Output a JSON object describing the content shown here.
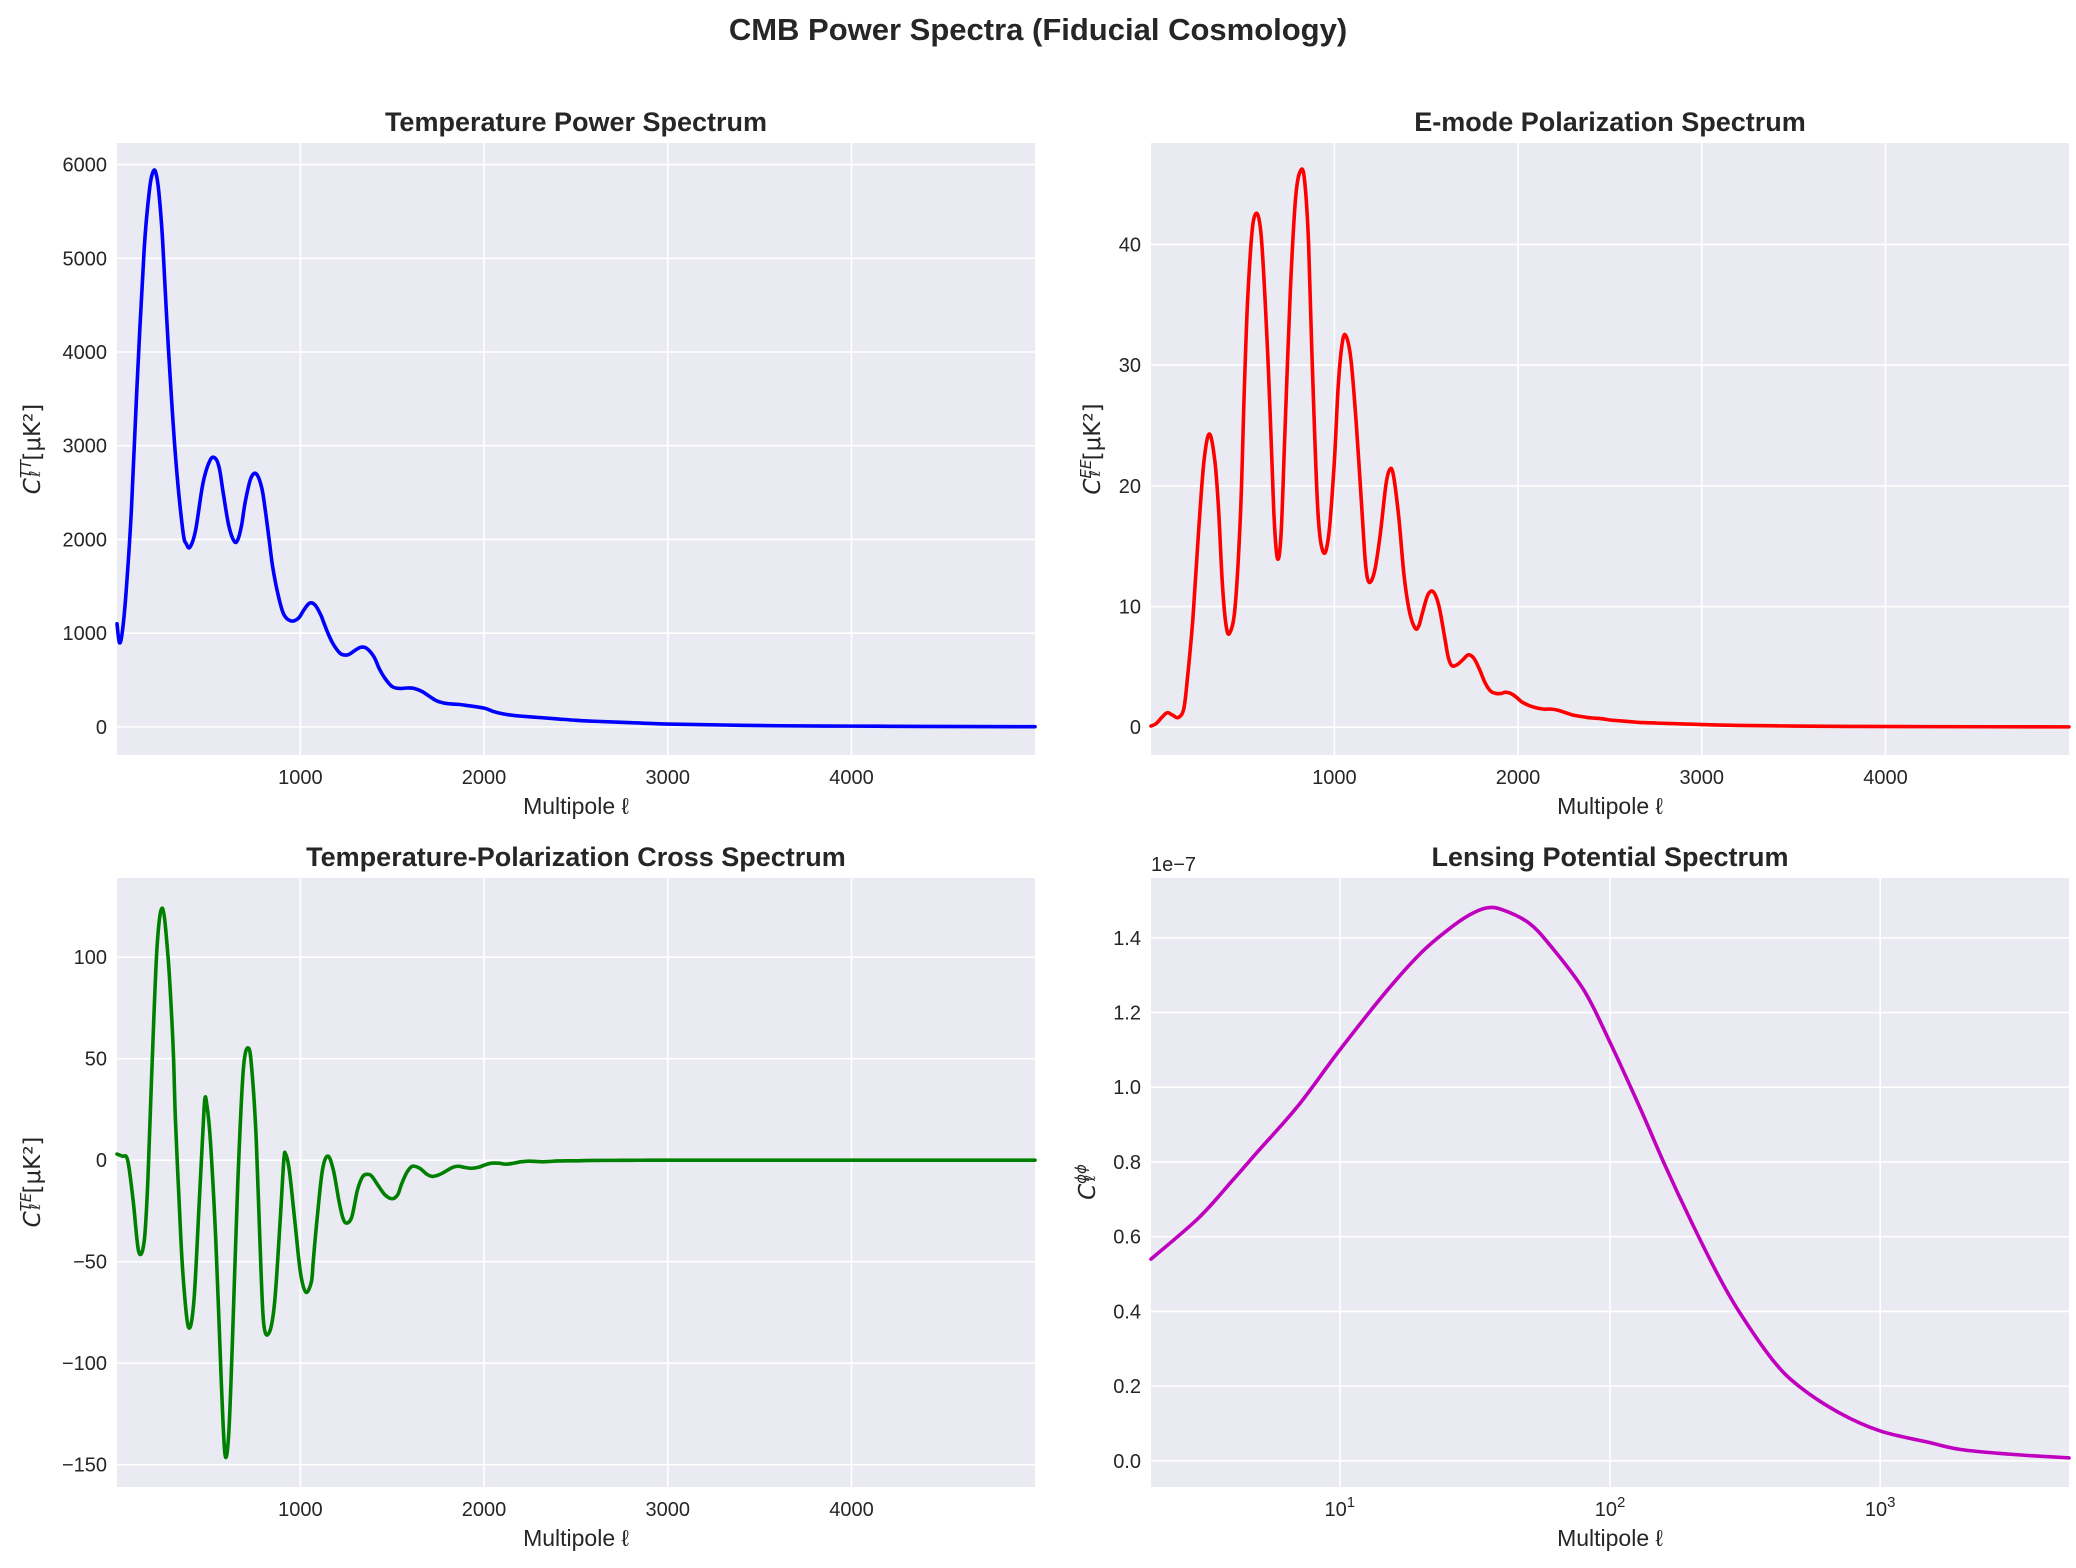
{
  "figure": {
    "suptitle": "CMB Power Spectra (Fiducial Cosmology)",
    "background": "#EAEAF2"
  },
  "chart_data": [
    {
      "id": "tt",
      "type": "line",
      "title": "Temperature Power Spectrum",
      "xlabel": "Multipole ℓ",
      "ylabel_base": "C",
      "ylabel_sup": "TT",
      "ylabel_units": "[μK²]",
      "xlim": [
        2,
        4999
      ],
      "ylim": [
        -300,
        6230
      ],
      "xscale": "linear",
      "xticks": [
        1000,
        2000,
        3000,
        4000
      ],
      "xtick_labels": [
        "1000",
        "2000",
        "3000",
        "4000"
      ],
      "yticks": [
        0,
        1000,
        2000,
        3000,
        4000,
        5000,
        6000
      ],
      "ytick_labels": [
        "0",
        "1000",
        "2000",
        "3000",
        "4000",
        "5000",
        "6000"
      ],
      "grid": true,
      "color": "#0000FF",
      "series": [
        {
          "x": [
            2,
            15,
            30,
            50,
            80,
            110,
            150,
            180,
            200,
            215,
            230,
            250,
            280,
            320,
            360,
            380,
            400,
            430,
            470,
            510,
            540,
            560,
            580,
            610,
            640,
            660,
            680,
            700,
            730,
            760,
            790,
            810,
            830,
            850,
            880,
            910,
            950,
            990,
            1020,
            1050,
            1080,
            1110,
            1130,
            1150,
            1180,
            1220,
            1260,
            1300,
            1330,
            1360,
            1400,
            1430,
            1460,
            1500,
            1540,
            1580,
            1620,
            1660,
            1700,
            1740,
            1780,
            1820,
            1860,
            1900,
            2000,
            2050,
            2100,
            2150,
            2200,
            2300,
            2400,
            2500,
            2600,
            2800,
            3000,
            3300,
            3600,
            4000,
            4400,
            4999
          ],
          "y": [
            1100,
            900,
            1000,
            1400,
            2300,
            3600,
            5100,
            5750,
            5930,
            5900,
            5700,
            5200,
            4100,
            2900,
            2100,
            1950,
            1920,
            2100,
            2600,
            2850,
            2860,
            2750,
            2500,
            2150,
            1980,
            2000,
            2150,
            2400,
            2650,
            2700,
            2550,
            2300,
            2000,
            1700,
            1400,
            1200,
            1130,
            1160,
            1250,
            1320,
            1300,
            1200,
            1100,
            1000,
            880,
            780,
            770,
            820,
            850,
            840,
            750,
            620,
            520,
            430,
            410,
            415,
            410,
            380,
            330,
            280,
            255,
            245,
            240,
            230,
            200,
            165,
            140,
            125,
            115,
            100,
            85,
            70,
            60,
            45,
            30,
            20,
            12,
            8,
            5,
            2
          ]
        }
      ]
    },
    {
      "id": "ee",
      "type": "line",
      "title": "E-mode Polarization Spectrum",
      "xlabel": "Multipole ℓ",
      "ylabel_base": "C",
      "ylabel_sup": "EE",
      "ylabel_units": "[μK²]",
      "xlim": [
        2,
        4999
      ],
      "ylim": [
        -2.3,
        48.4
      ],
      "xscale": "linear",
      "xticks": [
        1000,
        2000,
        3000,
        4000
      ],
      "xtick_labels": [
        "1000",
        "2000",
        "3000",
        "4000"
      ],
      "yticks": [
        0,
        10,
        20,
        30,
        40
      ],
      "ytick_labels": [
        "0",
        "10",
        "20",
        "30",
        "40"
      ],
      "grid": true,
      "color": "#FF0000",
      "series": [
        {
          "x": [
            2,
            30,
            60,
            90,
            120,
            150,
            180,
            200,
            230,
            260,
            290,
            320,
            350,
            370,
            390,
            410,
            430,
            460,
            490,
            510,
            530,
            560,
            600,
            640,
            670,
            690,
            710,
            730,
            760,
            790,
            820,
            840,
            860,
            880,
            910,
            940,
            970,
            1000,
            1020,
            1040,
            1060,
            1090,
            1120,
            1150,
            1170,
            1190,
            1220,
            1250,
            1280,
            1300,
            1320,
            1350,
            1380,
            1410,
            1440,
            1460,
            1480,
            1510,
            1540,
            1570,
            1600,
            1620,
            1640,
            1670,
            1700,
            1730,
            1760,
            1790,
            1820,
            1850,
            1880,
            1910,
            1930,
            1960,
            1990,
            2020,
            2060,
            2100,
            2140,
            2180,
            2220,
            2260,
            2300,
            2340,
            2380,
            2420,
            2460,
            2500,
            2540,
            2580,
            2620,
            2660,
            2700,
            2760,
            2850,
            2950,
            3050,
            3200,
            3500,
            3800,
            4200,
            4999
          ],
          "y": [
            0.1,
            0.3,
            0.8,
            1.2,
            1.0,
            0.8,
            1.5,
            4.0,
            9.0,
            16.0,
            22.0,
            24.3,
            22.0,
            18.0,
            12.0,
            8.5,
            7.8,
            10.0,
            18.0,
            28.0,
            36.0,
            42.0,
            41.0,
            30.0,
            18.0,
            14.0,
            16.0,
            24.0,
            36.0,
            44.0,
            46.2,
            45.0,
            40.0,
            30.0,
            18.0,
            14.5,
            16.0,
            22.0,
            28.0,
            31.5,
            32.5,
            30.5,
            25.0,
            18.0,
            13.5,
            12.0,
            13.0,
            16.0,
            20.0,
            21.3,
            21.0,
            17.5,
            12.5,
            9.5,
            8.2,
            8.4,
            9.5,
            11.0,
            11.2,
            10.0,
            7.5,
            5.8,
            5.1,
            5.2,
            5.6,
            6.0,
            5.7,
            4.8,
            3.7,
            3.0,
            2.8,
            2.8,
            2.9,
            2.8,
            2.5,
            2.1,
            1.8,
            1.6,
            1.5,
            1.5,
            1.4,
            1.2,
            1.0,
            0.9,
            0.8,
            0.75,
            0.7,
            0.6,
            0.55,
            0.5,
            0.45,
            0.4,
            0.38,
            0.34,
            0.3,
            0.25,
            0.2,
            0.15,
            0.1,
            0.07,
            0.05,
            0.03
          ]
        }
      ]
    },
    {
      "id": "te",
      "type": "line",
      "title": "Temperature-Polarization Cross Spectrum",
      "xlabel": "Multipole ℓ",
      "ylabel_base": "C",
      "ylabel_sup": "TE",
      "ylabel_units": "[μK²]",
      "xlim": [
        2,
        4999
      ],
      "ylim": [
        -161,
        139
      ],
      "xscale": "linear",
      "xticks": [
        1000,
        2000,
        3000,
        4000
      ],
      "xtick_labels": [
        "1000",
        "2000",
        "3000",
        "4000"
      ],
      "yticks": [
        -150,
        -100,
        -50,
        0,
        50,
        100
      ],
      "ytick_labels": [
        "−150",
        "−100",
        "−50",
        "0",
        "50",
        "100"
      ],
      "grid": true,
      "color": "#008000",
      "series": [
        {
          "x": [
            2,
            30,
            60,
            90,
            120,
            150,
            170,
            190,
            220,
            250,
            280,
            300,
            310,
            320,
            340,
            360,
            390,
            420,
            450,
            470,
            480,
            490,
            510,
            540,
            570,
            590,
            610,
            630,
            660,
            690,
            720,
            740,
            760,
            780,
            800,
            830,
            860,
            890,
            910,
            920,
            940,
            970,
            1000,
            1030,
            1060,
            1070,
            1090,
            1120,
            1150,
            1180,
            1210,
            1230,
            1250,
            1280,
            1310,
            1340,
            1370,
            1390,
            1420,
            1460,
            1500,
            1530,
            1550,
            1580,
            1610,
            1650,
            1690,
            1720,
            1760,
            1800,
            1830,
            1860,
            1890,
            1930,
            1970,
            2000,
            2040,
            2080,
            2120,
            2160,
            2200,
            2240,
            2280,
            2320,
            2360,
            2400,
            2450,
            2500,
            2550,
            2600,
            2650,
            2700,
            2750,
            2800,
            2900,
            3000,
            3200,
            3400,
            3800,
            4200,
            4999
          ],
          "y": [
            3,
            2,
            0,
            -20,
            -45,
            -40,
            -10,
            40,
            105,
            124,
            100,
            70,
            50,
            20,
            -20,
            -55,
            -82,
            -70,
            -20,
            15,
            30,
            28,
            10,
            -40,
            -110,
            -145,
            -135,
            -90,
            -10,
            45,
            55,
            40,
            10,
            -40,
            -80,
            -85,
            -70,
            -30,
            0,
            3,
            -5,
            -30,
            -55,
            -65,
            -60,
            -50,
            -30,
            -5,
            2,
            -5,
            -20,
            -28,
            -31,
            -28,
            -15,
            -8,
            -7,
            -8,
            -12,
            -17,
            -19,
            -17,
            -12,
            -6,
            -3,
            -4,
            -7,
            -8,
            -7,
            -5,
            -3.5,
            -3,
            -3.5,
            -4,
            -3.5,
            -2.5,
            -1.5,
            -1.5,
            -2,
            -1.5,
            -0.8,
            -0.5,
            -0.6,
            -0.8,
            -0.6,
            -0.4,
            -0.3,
            -0.3,
            -0.2,
            -0.15,
            -0.1,
            -0.1,
            -0.08,
            -0.05,
            -0.03,
            -0.02,
            -0.01,
            0,
            0,
            0,
            0
          ]
        }
      ]
    },
    {
      "id": "pp",
      "type": "line",
      "title": "Lensing Potential Spectrum",
      "xlabel": "Multipole ℓ",
      "ylabel_base": "C",
      "ylabel_sup": "ϕϕ",
      "ylabel_units": "",
      "offset_text": "1e−7",
      "xlim": [
        2,
        4999
      ],
      "ylim": [
        -0.07,
        1.56
      ],
      "xscale": "log",
      "xticks": [
        10,
        100,
        1000
      ],
      "xtick_labels": [
        "10^1",
        "10^2",
        "10^3"
      ],
      "yticks": [
        0,
        0.2,
        0.4,
        0.6,
        0.8,
        1.0,
        1.2,
        1.4
      ],
      "ytick_labels": [
        "0.0",
        "0.2",
        "0.4",
        "0.6",
        "0.8",
        "1.0",
        "1.2",
        "1.4"
      ],
      "grid": true,
      "color": "#BF00BF",
      "series": [
        {
          "x": [
            2,
            3,
            4,
            5,
            7,
            10,
            15,
            20,
            25,
            30,
            35,
            40,
            50,
            60,
            80,
            100,
            130,
            160,
            200,
            250,
            300,
            400,
            500,
            700,
            1000,
            1500,
            2000,
            3000,
            4000,
            4999
          ],
          "y": [
            0.54,
            0.65,
            0.75,
            0.83,
            0.95,
            1.1,
            1.26,
            1.36,
            1.42,
            1.46,
            1.48,
            1.475,
            1.44,
            1.38,
            1.26,
            1.12,
            0.94,
            0.79,
            0.64,
            0.5,
            0.4,
            0.27,
            0.2,
            0.13,
            0.08,
            0.05,
            0.03,
            0.018,
            0.012,
            0.008
          ]
        }
      ]
    }
  ]
}
